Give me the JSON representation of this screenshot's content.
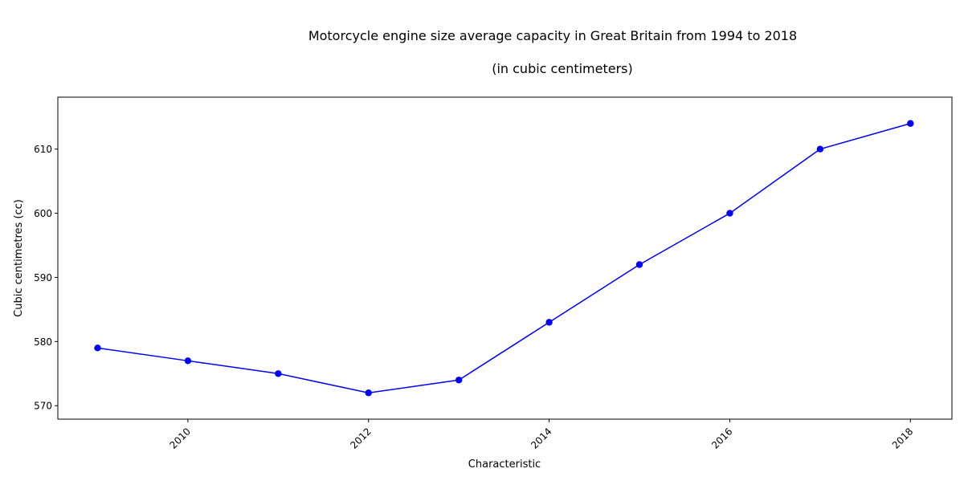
{
  "chart_data": {
    "type": "line",
    "title": "Motorcycle engine size average capacity in Great Britain from 1994 to 2018",
    "subtitle": "(in cubic centimeters)",
    "xlabel": "Characteristic",
    "ylabel": "Cubic centimetres (cc)",
    "x": [
      2009,
      2010,
      2011,
      2012,
      2013,
      2014,
      2015,
      2016,
      2017,
      2018
    ],
    "values": [
      579,
      577,
      575,
      572,
      574,
      583,
      592,
      600,
      610,
      614
    ],
    "xlim": [
      2008.56,
      2018.46
    ],
    "ylim": [
      567.9,
      618.1
    ],
    "x_ticks": [
      "2010",
      "2012",
      "2014",
      "2016",
      "2018"
    ],
    "x_tick_values": [
      2010,
      2012,
      2014,
      2016,
      2018
    ],
    "y_ticks": [
      "570",
      "580",
      "590",
      "600",
      "610"
    ],
    "y_tick_values": [
      570,
      580,
      590,
      600,
      610
    ],
    "grid": false,
    "line_color": "#0000ff",
    "marker_color": "#0000ff"
  }
}
